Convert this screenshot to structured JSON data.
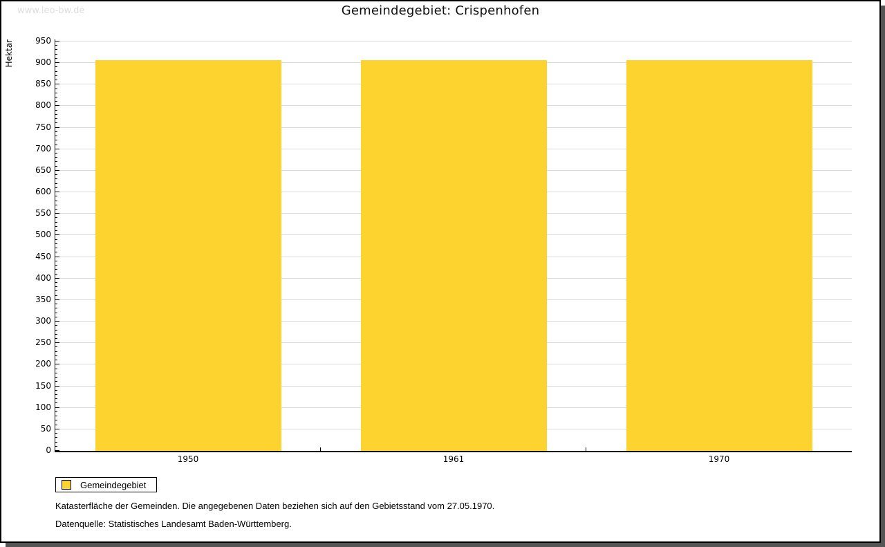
{
  "watermark": "www.leo-bw.de",
  "title": "Gemeindegebiet: Crispenhofen",
  "chart_data": {
    "type": "bar",
    "title": "Gemeindegebiet: Crispenhofen",
    "categories": [
      "1950",
      "1961",
      "1970"
    ],
    "series": [
      {
        "name": "Gemeindegebiet",
        "values": [
          907,
          907,
          907
        ],
        "color": "#fcd32f"
      }
    ],
    "xlabel": "",
    "ylabel": "Hektar",
    "ylim": [
      0,
      950
    ],
    "y_major_step": 50,
    "y_minor_step": 10,
    "grid": true,
    "legend_position": "bottom-left"
  },
  "legend": {
    "items": [
      {
        "label": "Gemeindegebiet",
        "color": "#fcd32f"
      }
    ]
  },
  "footer": {
    "line1": "Katasterfläche der Gemeinden. Die angegebenen Daten beziehen sich auf den Gebietsstand vom 27.05.1970.",
    "line2": "Datenquelle: Statistisches Landesamt Baden-Württemberg."
  },
  "colors": {
    "bar": "#fcd32f",
    "grid": "#d9d9d9",
    "axis": "#000000",
    "watermark": "#dddddd",
    "shadow": "#555555",
    "background": "#ffffff"
  }
}
